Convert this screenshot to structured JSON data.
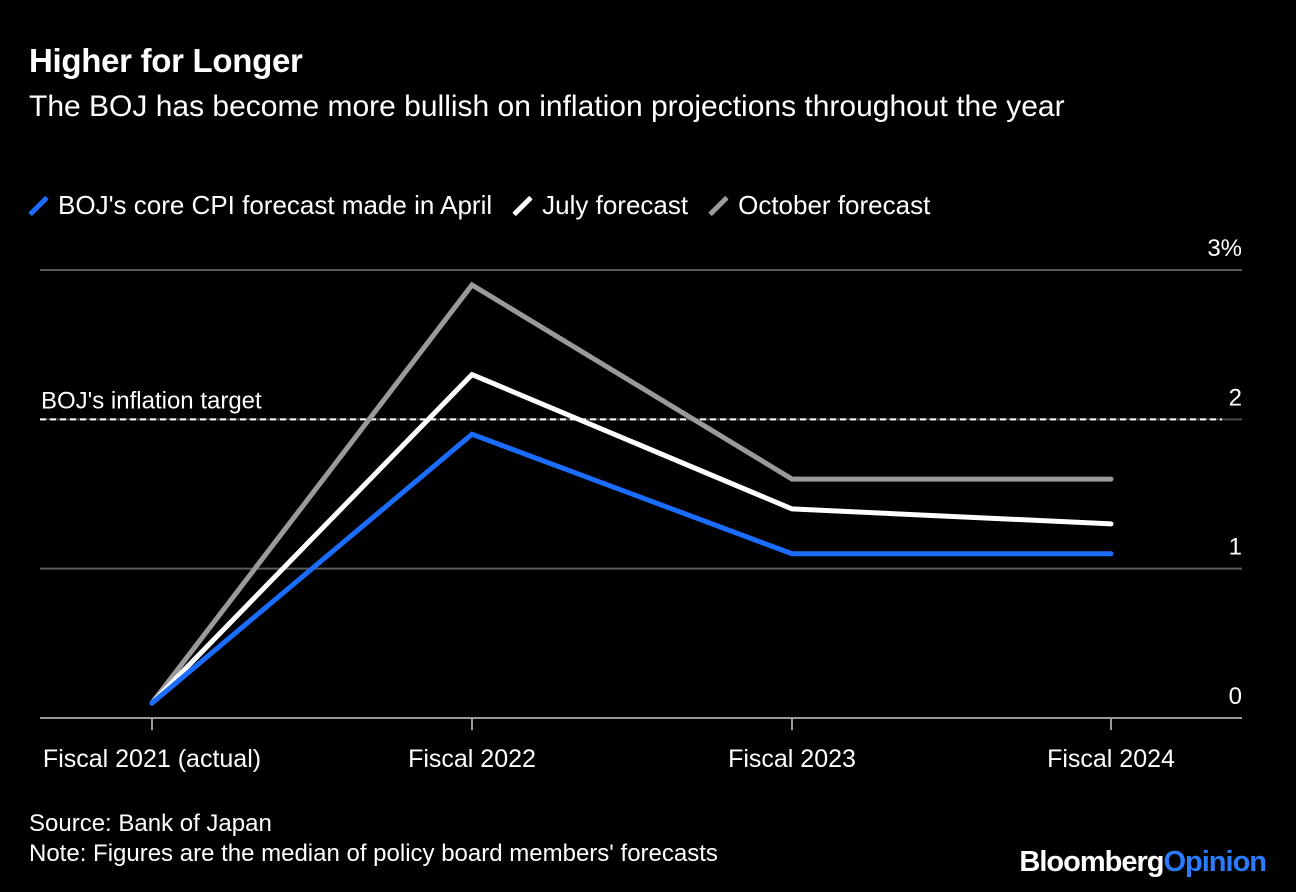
{
  "header": {
    "title": "Higher for Longer",
    "subtitle": "The BOJ has become more bullish on inflation projections throughout the year"
  },
  "legend": [
    {
      "label": "BOJ's core CPI forecast made in April",
      "color": "#1a6dff"
    },
    {
      "label": "July forecast",
      "color": "#ffffff"
    },
    {
      "label": "October forecast",
      "color": "#9a9a9a"
    }
  ],
  "chart_data": {
    "type": "line",
    "title": "Higher for Longer",
    "categories": [
      "Fiscal 2021 (actual)",
      "Fiscal 2022",
      "Fiscal 2023",
      "Fiscal 2024"
    ],
    "ylim": [
      0,
      3
    ],
    "yticks": [
      {
        "value": 0,
        "label": "0"
      },
      {
        "value": 1,
        "label": "1"
      },
      {
        "value": 2,
        "label": "2"
      },
      {
        "value": 3,
        "label": "3%"
      }
    ],
    "grid": true,
    "series": [
      {
        "name": "BOJ's core CPI forecast made in April",
        "color": "#1a6dff",
        "values": [
          0.1,
          1.9,
          1.1,
          1.1
        ]
      },
      {
        "name": "July forecast",
        "color": "#ffffff",
        "values": [
          0.1,
          2.3,
          1.4,
          1.3
        ]
      },
      {
        "name": "October forecast",
        "color": "#9a9a9a",
        "values": [
          0.1,
          2.9,
          1.6,
          1.6
        ]
      }
    ],
    "reference_line": {
      "value": 2,
      "label": "BOJ's inflation target"
    }
  },
  "footer": {
    "source": "Source: Bank of Japan",
    "note": "Note: Figures are the median of policy board members' forecasts"
  },
  "brand": {
    "part1": "Bloomberg",
    "part2": "Opinion"
  }
}
